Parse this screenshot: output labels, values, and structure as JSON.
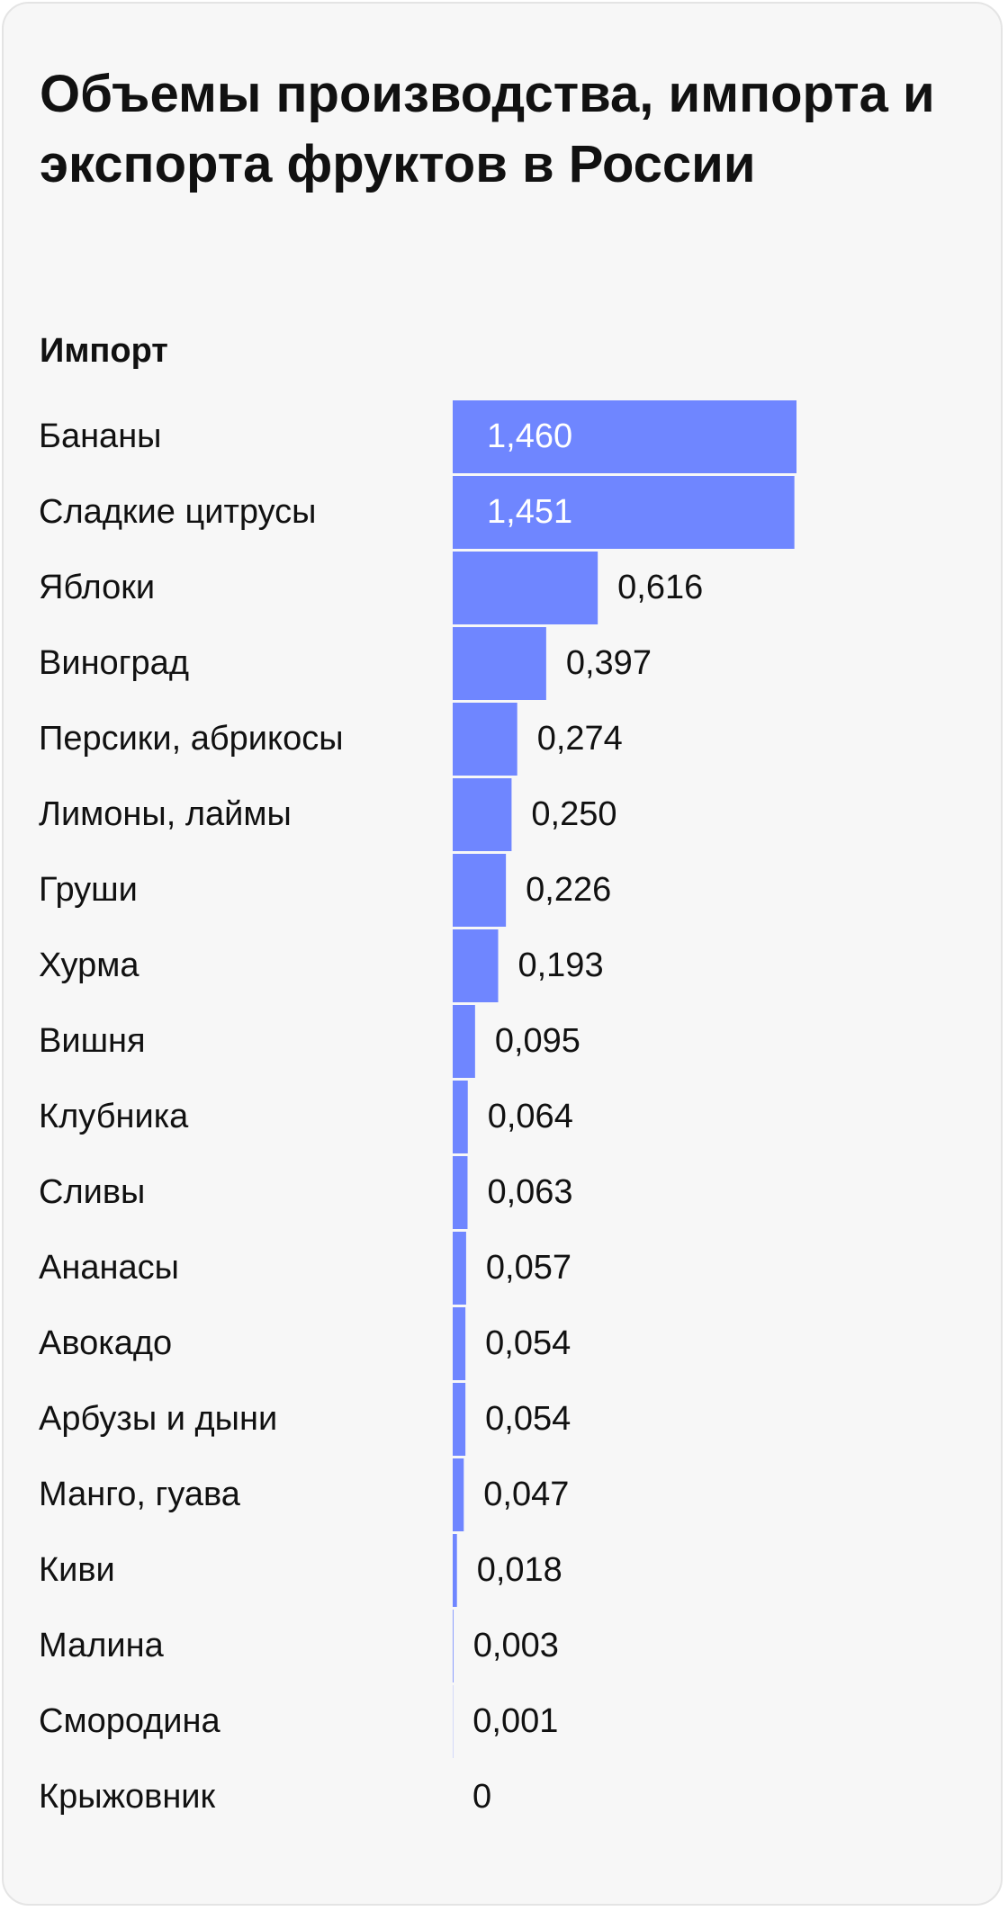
{
  "chart_data": {
    "type": "bar",
    "orientation": "horizontal",
    "title": "Объемы производства, импорта и экспорта фруктов в России",
    "subtitle": "Импорт",
    "color": "#6f86ff",
    "categories": [
      "Бананы",
      "Сладкие цитрусы",
      "Яблоки",
      "Виноград",
      "Персики, абрикосы",
      "Лимоны, лаймы",
      "Груши",
      "Хурма",
      "Вишня",
      "Клубника",
      "Сливы",
      "Ананасы",
      "Авокадо",
      "Арбузы и дыни",
      "Манго, гуава",
      "Киви",
      "Малина",
      "Смородина",
      "Крыжовник"
    ],
    "values": [
      1.46,
      1.451,
      0.616,
      0.397,
      0.274,
      0.25,
      0.226,
      0.193,
      0.095,
      0.064,
      0.063,
      0.057,
      0.054,
      0.054,
      0.047,
      0.018,
      0.003,
      0.001,
      0
    ],
    "value_labels": [
      "1,460",
      "1,451",
      "0,616",
      "0,397",
      "0,274",
      "0,250",
      "0,226",
      "0,193",
      "0,095",
      "0,064",
      "0,063",
      "0,057",
      "0,054",
      "0,054",
      "0,047",
      "0,018",
      "0,003",
      "0,001",
      "0"
    ]
  }
}
